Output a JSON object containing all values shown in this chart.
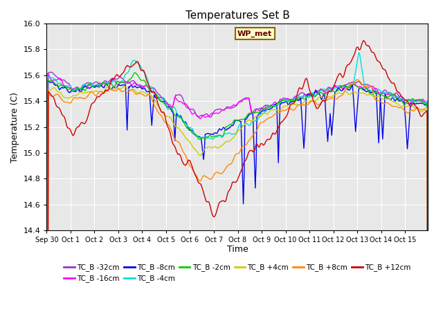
{
  "title": "Temperatures Set B",
  "xlabel": "Time",
  "ylabel": "Temperature (C)",
  "ylim": [
    14.4,
    16.0
  ],
  "background_color": "#e8e8e8",
  "series": [
    {
      "label": "TC_B -32cm",
      "color": "#9933cc"
    },
    {
      "label": "TC_B -16cm",
      "color": "#ff00ff"
    },
    {
      "label": "TC_B -8cm",
      "color": "#0000ee"
    },
    {
      "label": "TC_B -4cm",
      "color": "#00dddd"
    },
    {
      "label": "TC_B -2cm",
      "color": "#00cc00"
    },
    {
      "label": "TC_B +4cm",
      "color": "#cccc00"
    },
    {
      "label": "TC_B +8cm",
      "color": "#ff8800"
    },
    {
      "label": "TC_B +12cm",
      "color": "#cc0000"
    }
  ],
  "ytick_labels": [
    "14.4",
    "14.6",
    "14.8",
    "15.0",
    "15.2",
    "15.4",
    "15.6",
    "15.8",
    "16.0"
  ],
  "ytick_positions": [
    14.4,
    14.6,
    14.8,
    15.0,
    15.2,
    15.4,
    15.6,
    15.8,
    16.0
  ],
  "annotation_text": "WP_met",
  "grid_color": "#ffffff",
  "line_width": 1.0
}
